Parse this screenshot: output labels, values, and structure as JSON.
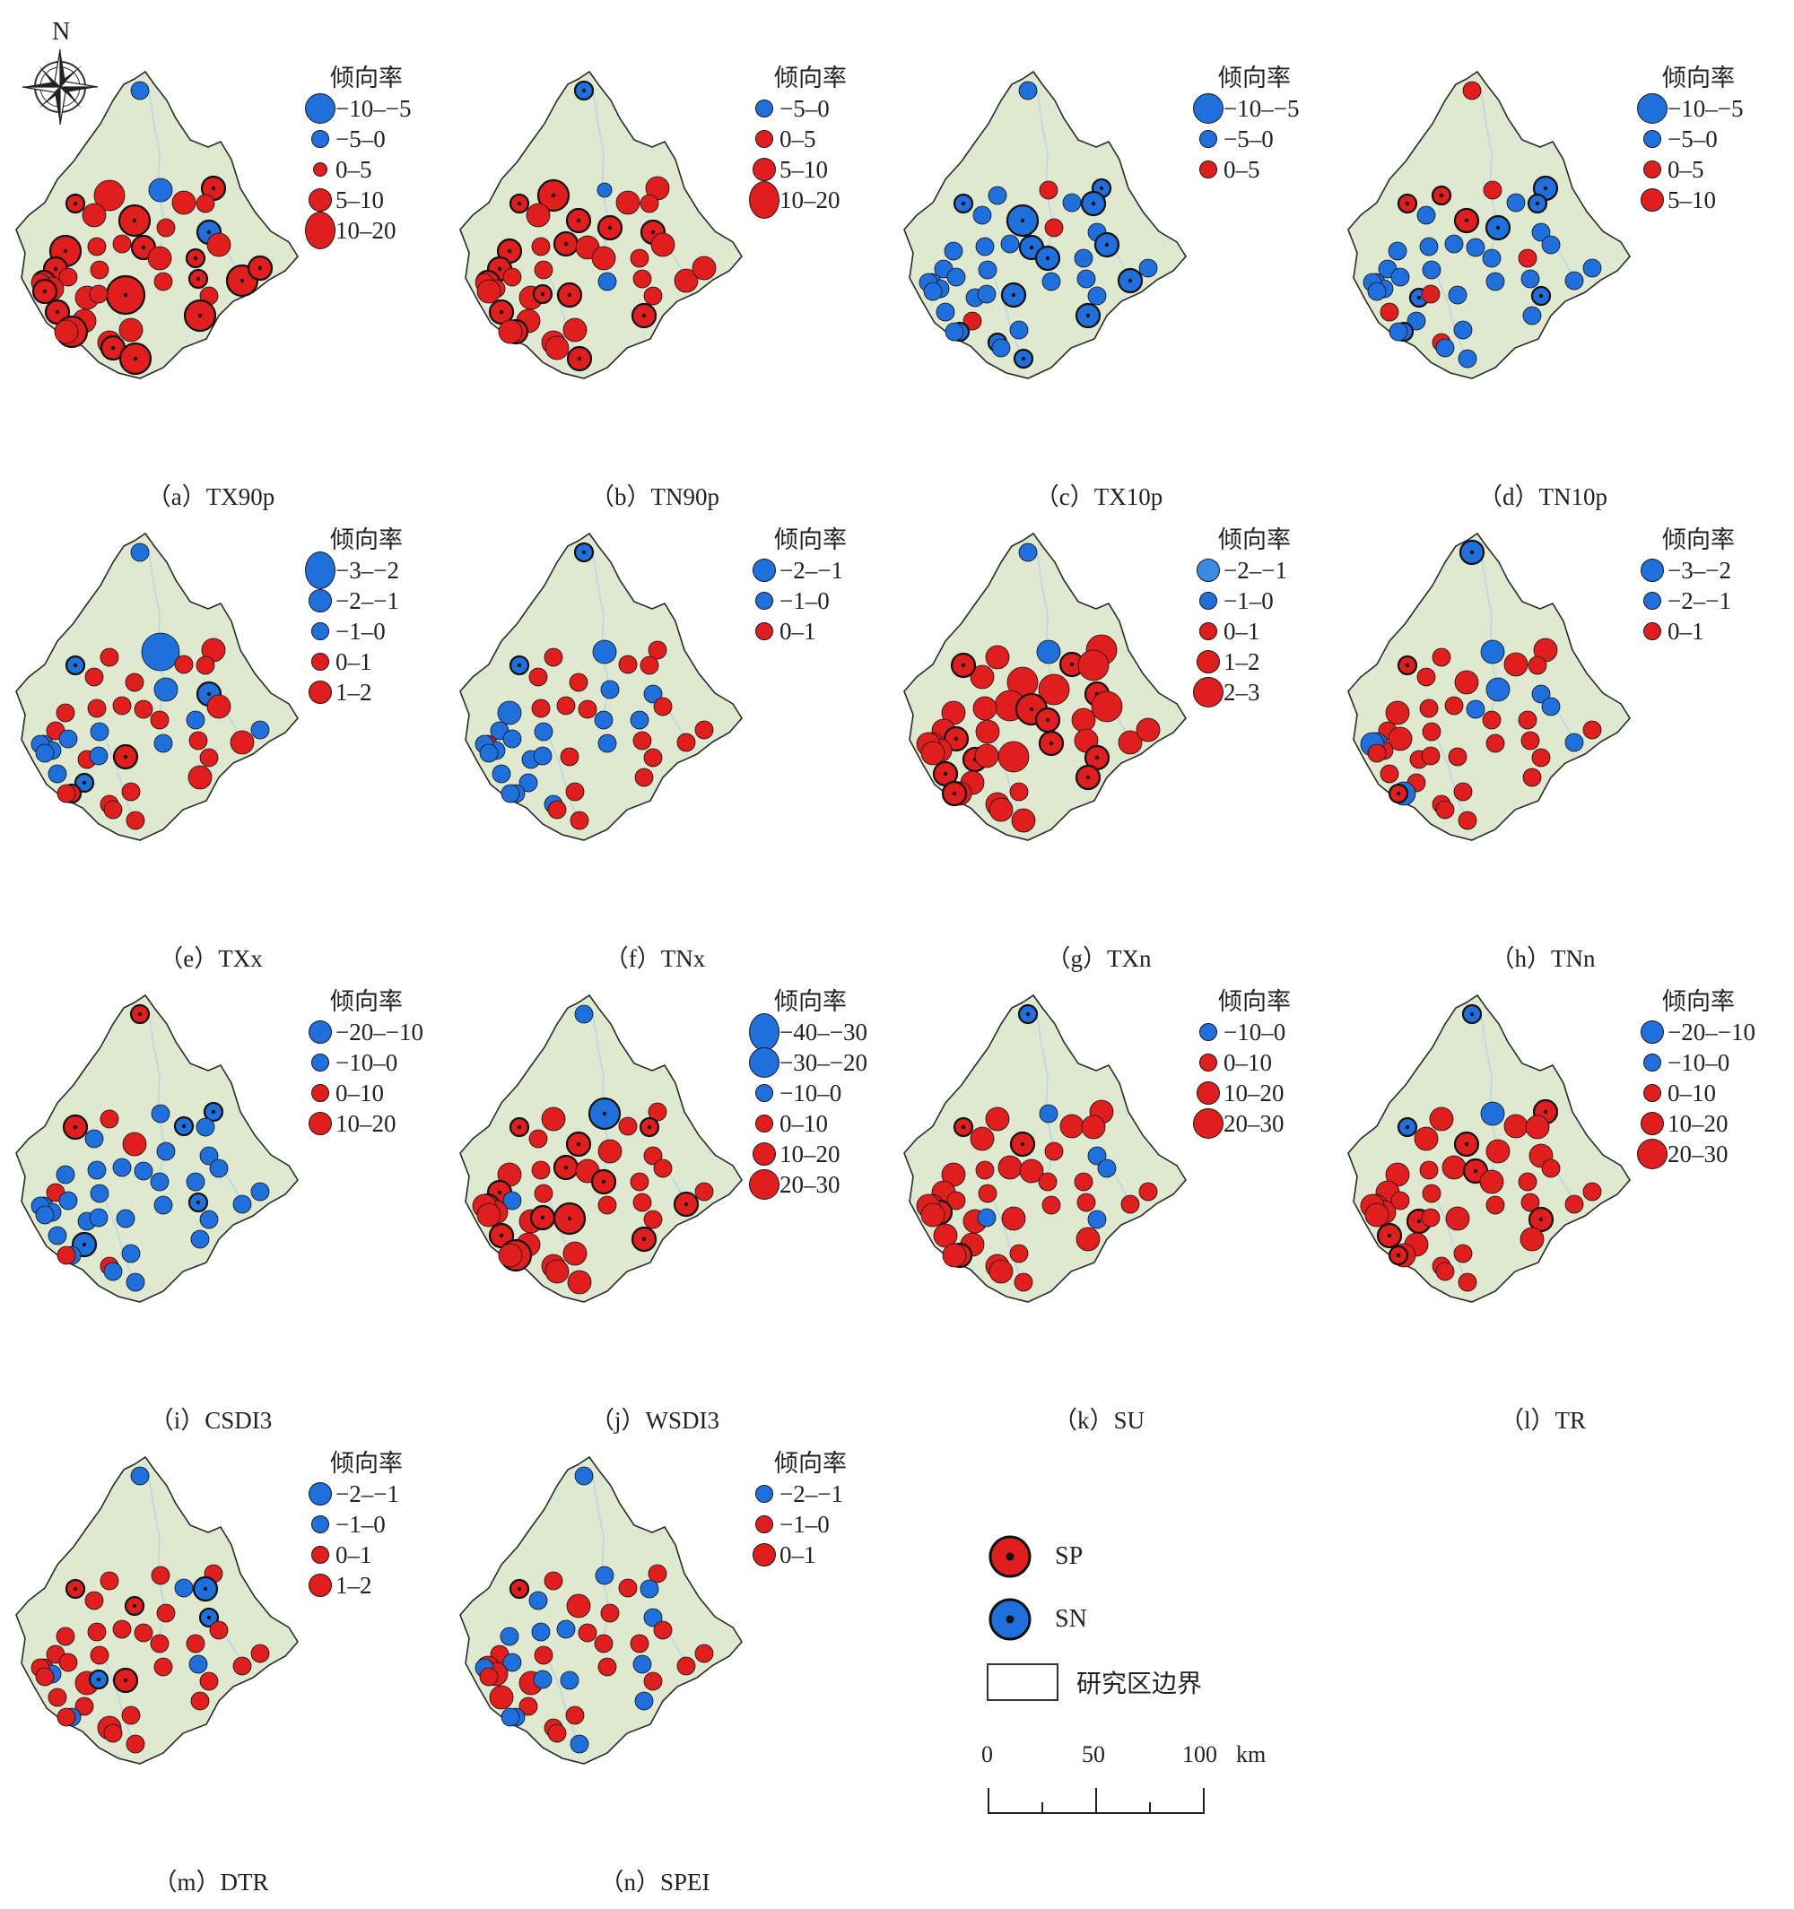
{
  "compass_label": "N",
  "colors": {
    "increase": "#e01e1e",
    "decrease": "#1f6fdc",
    "land": "#dfe9cf",
    "boundary": "#2a2a2a"
  },
  "panels": [
    {
      "caption": "（a）TX90p",
      "legend_title": "倾向率",
      "classes": [
        {
          "label": "−10–−5",
          "color": "#1f6fdc",
          "size": 4
        },
        {
          "label": "−5–0",
          "color": "#1f6fdc",
          "size": 2
        },
        {
          "label": "0–5",
          "color": "#e01e1e",
          "size": 1
        },
        {
          "label": "5–10",
          "color": "#e01e1e",
          "size": 3
        },
        {
          "label": "10–20",
          "color": "#e01e1e",
          "size": 5
        }
      ]
    },
    {
      "caption": "（b）TN90p",
      "legend_title": "倾向率",
      "classes": [
        {
          "label": "−5–0",
          "color": "#1f6fdc",
          "size": 2
        },
        {
          "label": "0–5",
          "color": "#e01e1e",
          "size": 2
        },
        {
          "label": "5–10",
          "color": "#e01e1e",
          "size": 3
        },
        {
          "label": "10–20",
          "color": "#e01e1e",
          "size": 5
        }
      ]
    },
    {
      "caption": "（c）TX10p",
      "legend_title": "倾向率",
      "classes": [
        {
          "label": "−10–−5",
          "color": "#1f6fdc",
          "size": 4
        },
        {
          "label": "−5–0",
          "color": "#1f6fdc",
          "size": 2
        },
        {
          "label": "0–5",
          "color": "#e01e1e",
          "size": 2
        }
      ]
    },
    {
      "caption": "（d）TN10p",
      "legend_title": "倾向率",
      "classes": [
        {
          "label": "−10–−5",
          "color": "#1f6fdc",
          "size": 4
        },
        {
          "label": "−5–0",
          "color": "#1f6fdc",
          "size": 2
        },
        {
          "label": "0–5",
          "color": "#e01e1e",
          "size": 2
        },
        {
          "label": "5–10",
          "color": "#e01e1e",
          "size": 3
        }
      ]
    },
    {
      "caption": "（e）TXx",
      "legend_title": "倾向率",
      "classes": [
        {
          "label": "−3–−2",
          "color": "#1f6fdc",
          "size": 5
        },
        {
          "label": "−2–−1",
          "color": "#1f6fdc",
          "size": 3
        },
        {
          "label": "−1–0",
          "color": "#1f6fdc",
          "size": 2
        },
        {
          "label": "0–1",
          "color": "#e01e1e",
          "size": 2
        },
        {
          "label": "1–2",
          "color": "#e01e1e",
          "size": 3
        }
      ]
    },
    {
      "caption": "（f）TNx",
      "legend_title": "倾向率",
      "classes": [
        {
          "label": "−2–−1",
          "color": "#1f6fdc",
          "size": 3
        },
        {
          "label": "−1–0",
          "color": "#1f6fdc",
          "size": 2
        },
        {
          "label": "0–1",
          "color": "#e01e1e",
          "size": 2
        }
      ]
    },
    {
      "caption": "（g）TXn",
      "legend_title": "倾向率",
      "classes": [
        {
          "label": "−2–−1",
          "color": "#3a8be0",
          "size": 3
        },
        {
          "label": "−1–0",
          "color": "#1f6fdc",
          "size": 2
        },
        {
          "label": "0–1",
          "color": "#e01e1e",
          "size": 2
        },
        {
          "label": "1–2",
          "color": "#e01e1e",
          "size": 3
        },
        {
          "label": "2–3",
          "color": "#e01e1e",
          "size": 4
        }
      ]
    },
    {
      "caption": "（h）TNn",
      "legend_title": "倾向率",
      "classes": [
        {
          "label": "−3–−2",
          "color": "#1f6fdc",
          "size": 3
        },
        {
          "label": "−2–−1",
          "color": "#1f6fdc",
          "size": 2
        },
        {
          "label": "0–1",
          "color": "#e01e1e",
          "size": 2
        }
      ]
    },
    {
      "caption": "（i）CSDI3",
      "legend_title": "倾向率",
      "classes": [
        {
          "label": "−20–−10",
          "color": "#1f6fdc",
          "size": 3
        },
        {
          "label": "−10–0",
          "color": "#1f6fdc",
          "size": 2
        },
        {
          "label": "0–10",
          "color": "#e01e1e",
          "size": 2
        },
        {
          "label": "10–20",
          "color": "#e01e1e",
          "size": 3
        }
      ]
    },
    {
      "caption": "（j）WSDI3",
      "legend_title": "倾向率",
      "classes": [
        {
          "label": "−40–−30",
          "color": "#1f6fdc",
          "size": 5
        },
        {
          "label": "−30–−20",
          "color": "#1f6fdc",
          "size": 4
        },
        {
          "label": "−10–0",
          "color": "#1f6fdc",
          "size": 2
        },
        {
          "label": "0–10",
          "color": "#e01e1e",
          "size": 2
        },
        {
          "label": "10–20",
          "color": "#e01e1e",
          "size": 3
        },
        {
          "label": "20–30",
          "color": "#e01e1e",
          "size": 4
        }
      ]
    },
    {
      "caption": "（k）SU",
      "legend_title": "倾向率",
      "classes": [
        {
          "label": "−10–0",
          "color": "#1f6fdc",
          "size": 2
        },
        {
          "label": "0–10",
          "color": "#e01e1e",
          "size": 2
        },
        {
          "label": "10–20",
          "color": "#e01e1e",
          "size": 3
        },
        {
          "label": "20–30",
          "color": "#e01e1e",
          "size": 4
        }
      ]
    },
    {
      "caption": "（l）TR",
      "legend_title": "倾向率",
      "classes": [
        {
          "label": "−20–−10",
          "color": "#1f6fdc",
          "size": 3
        },
        {
          "label": "−10–0",
          "color": "#1f6fdc",
          "size": 2
        },
        {
          "label": "0–10",
          "color": "#e01e1e",
          "size": 2
        },
        {
          "label": "10–20",
          "color": "#e01e1e",
          "size": 3
        },
        {
          "label": "20–30",
          "color": "#e01e1e",
          "size": 4
        }
      ]
    },
    {
      "caption": "（m）DTR",
      "legend_title": "倾向率",
      "classes": [
        {
          "label": "−2–−1",
          "color": "#1f6fdc",
          "size": 3
        },
        {
          "label": "−1–0",
          "color": "#1f6fdc",
          "size": 2
        },
        {
          "label": "0–1",
          "color": "#e01e1e",
          "size": 2
        },
        {
          "label": "1–2",
          "color": "#e01e1e",
          "size": 3
        }
      ]
    },
    {
      "caption": "（n）SPEI",
      "legend_title": "倾向率",
      "classes": [
        {
          "label": "−2–−1",
          "color": "#1f6fdc",
          "size": 2
        },
        {
          "label": "−1–0",
          "color": "#e01e1e",
          "size": 2
        },
        {
          "label": "0–1",
          "color": "#e01e1e",
          "size": 3
        }
      ]
    }
  ],
  "legend": {
    "sp_label": "SP",
    "sn_label": "SN",
    "boundary_label": "研究区边界",
    "scale_ticks": [
      "0",
      "50",
      "100"
    ],
    "scale_unit": "km"
  }
}
